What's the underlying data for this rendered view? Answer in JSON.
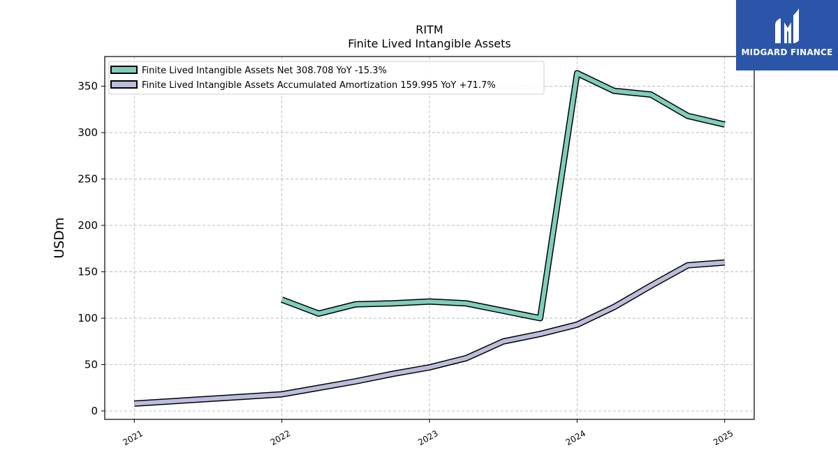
{
  "chart_data": {
    "type": "line",
    "title": "RITM",
    "subtitle": "Finite Lived Intangible Assets",
    "xlabel": "",
    "ylabel": "USDm",
    "xlim": [
      2020.8,
      2025.2
    ],
    "ylim": [
      -9,
      382
    ],
    "x_ticks": [
      {
        "value": 2021,
        "label": "2021"
      },
      {
        "value": 2022,
        "label": "2022"
      },
      {
        "value": 2023,
        "label": "2023"
      },
      {
        "value": 2024,
        "label": "2024"
      },
      {
        "value": 2025,
        "label": "2025"
      }
    ],
    "y_ticks": [
      {
        "value": 0,
        "label": "0"
      },
      {
        "value": 50,
        "label": "50"
      },
      {
        "value": 100,
        "label": "100"
      },
      {
        "value": 150,
        "label": "150"
      },
      {
        "value": 200,
        "label": "200"
      },
      {
        "value": 250,
        "label": "250"
      },
      {
        "value": 300,
        "label": "300"
      },
      {
        "value": 350,
        "label": "350"
      }
    ],
    "grid": true,
    "legend_position": "top-left",
    "series": [
      {
        "name": "Finite Lived Intangible Assets Net  308.708 YoY -15.3%",
        "color": "#7fcdbb",
        "points": [
          {
            "x": 2022.0,
            "y": 120
          },
          {
            "x": 2022.25,
            "y": 105
          },
          {
            "x": 2022.5,
            "y": 115
          },
          {
            "x": 2022.75,
            "y": 116
          },
          {
            "x": 2023.0,
            "y": 118
          },
          {
            "x": 2023.25,
            "y": 116
          },
          {
            "x": 2023.5,
            "y": 108
          },
          {
            "x": 2023.75,
            "y": 100
          },
          {
            "x": 2024.0,
            "y": 364
          },
          {
            "x": 2024.25,
            "y": 345
          },
          {
            "x": 2024.5,
            "y": 341
          },
          {
            "x": 2024.75,
            "y": 318
          },
          {
            "x": 2025.0,
            "y": 308.708
          }
        ]
      },
      {
        "name": "Finite Lived Intangible Assets Accumulated Amortization  159.995 YoY +71.7%",
        "color": "#bcbddc",
        "points": [
          {
            "x": 2021.0,
            "y": 8
          },
          {
            "x": 2022.0,
            "y": 18
          },
          {
            "x": 2022.25,
            "y": 25
          },
          {
            "x": 2022.5,
            "y": 32
          },
          {
            "x": 2022.75,
            "y": 40
          },
          {
            "x": 2023.0,
            "y": 47
          },
          {
            "x": 2023.25,
            "y": 57
          },
          {
            "x": 2023.5,
            "y": 75
          },
          {
            "x": 2023.75,
            "y": 83
          },
          {
            "x": 2024.0,
            "y": 93
          },
          {
            "x": 2024.25,
            "y": 112
          },
          {
            "x": 2024.5,
            "y": 135
          },
          {
            "x": 2024.75,
            "y": 157
          },
          {
            "x": 2025.0,
            "y": 159.995
          }
        ]
      }
    ]
  },
  "logo": {
    "text": "MIDGARD FINANCE",
    "background": "#2b55a8"
  }
}
